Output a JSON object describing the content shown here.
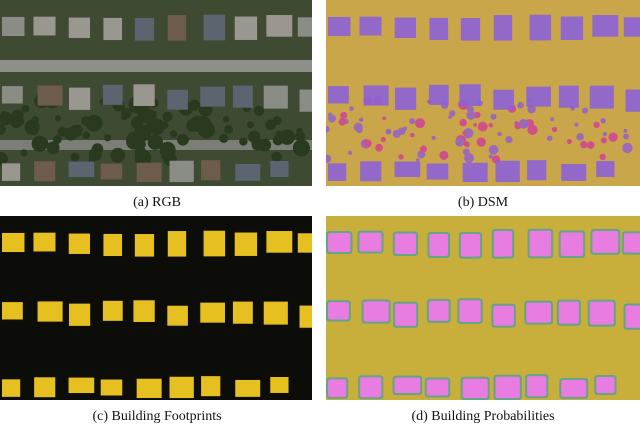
{
  "figure": {
    "panels": [
      {
        "caption": "(a) RGB"
      },
      {
        "caption": "(b) DSM"
      },
      {
        "caption": "(c) Building Footprints"
      },
      {
        "caption": "(d) Building Probabilities"
      }
    ]
  }
}
